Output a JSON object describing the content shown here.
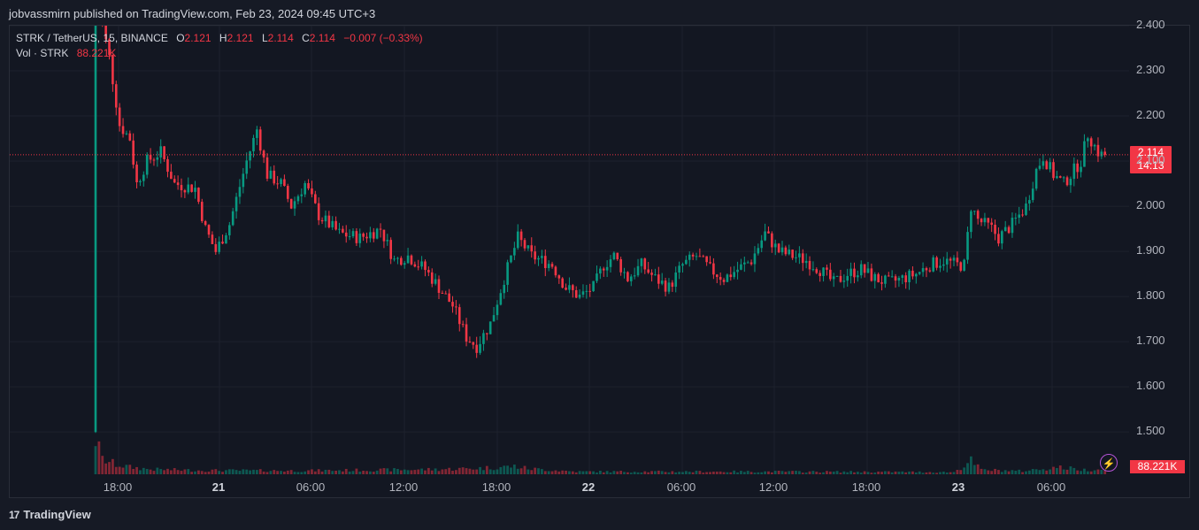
{
  "header": {
    "published": "jobvassmirn published on TradingView.com, Feb 23, 2024 09:45 UTC+3"
  },
  "legend": {
    "symbol": "STRK / TetherUS, 15, BINANCE",
    "o_label": "O",
    "o_value": "2.121",
    "h_label": "H",
    "h_value": "2.121",
    "l_label": "L",
    "l_value": "2.114",
    "c_label": "C",
    "c_value": "2.114",
    "change": "−0.007 (−0.33%)",
    "vol_label": "Vol · STRK",
    "vol_value": "88.221K"
  },
  "price_tag": {
    "price": "2.114",
    "countdown": "14:13"
  },
  "volume_tag": "88.221K",
  "footer": {
    "logo_text": "TradingView",
    "logo_icon": "tradingview-logo-icon"
  },
  "colors": {
    "up": "#089981",
    "down": "#f23645",
    "bg": "#131722",
    "grid": "#1e222d",
    "bolt": "#b553d6"
  },
  "chart_data": {
    "type": "candlestick",
    "interval": "15",
    "y_axis_labels": [
      "2.400",
      "2.300",
      "2.200",
      "2.100",
      "2.000",
      "1.900",
      "1.800",
      "1.700",
      "1.600",
      "1.500"
    ],
    "ylim": [
      1.4,
      2.42
    ],
    "x_axis_labels": [
      "18:00",
      "21",
      "06:00",
      "12:00",
      "18:00",
      "22",
      "06:00",
      "12:00",
      "18:00",
      "23",
      "06:00"
    ],
    "x_axis_bold": [
      "21",
      "22",
      "23"
    ],
    "last_price": 2.114,
    "anchors": [
      [
        0,
        1.5
      ],
      [
        1,
        2.55
      ],
      [
        3,
        2.4
      ],
      [
        5,
        2.33
      ],
      [
        8,
        2.18
      ],
      [
        11,
        2.15
      ],
      [
        13,
        2.05
      ],
      [
        16,
        2.1
      ],
      [
        20,
        2.12
      ],
      [
        24,
        2.05
      ],
      [
        30,
        2.04
      ],
      [
        33,
        1.95
      ],
      [
        36,
        1.9
      ],
      [
        40,
        1.96
      ],
      [
        45,
        2.1
      ],
      [
        48,
        2.17
      ],
      [
        51,
        2.07
      ],
      [
        55,
        2.05
      ],
      [
        58,
        2.0
      ],
      [
        62,
        2.05
      ],
      [
        66,
        1.98
      ],
      [
        72,
        1.94
      ],
      [
        78,
        1.93
      ],
      [
        84,
        1.95
      ],
      [
        88,
        1.88
      ],
      [
        92,
        1.89
      ],
      [
        97,
        1.86
      ],
      [
        101,
        1.82
      ],
      [
        105,
        1.78
      ],
      [
        109,
        1.71
      ],
      [
        112,
        1.69
      ],
      [
        116,
        1.74
      ],
      [
        120,
        1.84
      ],
      [
        124,
        1.93
      ],
      [
        128,
        1.89
      ],
      [
        134,
        1.87
      ],
      [
        138,
        1.82
      ],
      [
        142,
        1.8
      ],
      [
        146,
        1.82
      ],
      [
        149,
        1.87
      ],
      [
        152,
        1.89
      ],
      [
        156,
        1.84
      ],
      [
        160,
        1.87
      ],
      [
        164,
        1.84
      ],
      [
        168,
        1.82
      ],
      [
        172,
        1.87
      ],
      [
        176,
        1.89
      ],
      [
        180,
        1.86
      ],
      [
        184,
        1.84
      ],
      [
        188,
        1.86
      ],
      [
        192,
        1.88
      ],
      [
        196,
        1.94
      ],
      [
        200,
        1.9
      ],
      [
        204,
        1.89
      ],
      [
        208,
        1.88
      ],
      [
        212,
        1.86
      ],
      [
        216,
        1.83
      ],
      [
        220,
        1.85
      ],
      [
        224,
        1.86
      ],
      [
        228,
        1.84
      ],
      [
        232,
        1.83
      ],
      [
        236,
        1.84
      ],
      [
        240,
        1.85
      ],
      [
        244,
        1.87
      ],
      [
        248,
        1.88
      ],
      [
        252,
        1.87
      ],
      [
        254,
        1.87
      ],
      [
        256,
        2.0
      ],
      [
        258,
        1.97
      ],
      [
        262,
        1.95
      ],
      [
        264,
        1.93
      ],
      [
        268,
        1.96
      ],
      [
        272,
        2.0
      ],
      [
        275,
        2.08
      ],
      [
        277,
        2.11
      ],
      [
        280,
        2.07
      ],
      [
        283,
        2.05
      ],
      [
        286,
        2.08
      ],
      [
        288,
        2.1
      ],
      [
        290,
        2.16
      ],
      [
        293,
        2.12
      ],
      [
        294,
        2.114
      ]
    ],
    "volume_anchors": [
      [
        0,
        2.0
      ],
      [
        2,
        0.85
      ],
      [
        6,
        0.55
      ],
      [
        10,
        0.4
      ],
      [
        16,
        0.28
      ],
      [
        30,
        0.22
      ],
      [
        60,
        0.2
      ],
      [
        100,
        0.28
      ],
      [
        113,
        0.35
      ],
      [
        122,
        0.45
      ],
      [
        126,
        0.32
      ],
      [
        140,
        0.15
      ],
      [
        200,
        0.15
      ],
      [
        250,
        0.12
      ],
      [
        255,
        0.75
      ],
      [
        258,
        0.25
      ],
      [
        270,
        0.18
      ],
      [
        280,
        0.4
      ],
      [
        288,
        0.25
      ],
      [
        294,
        0.3
      ]
    ]
  }
}
